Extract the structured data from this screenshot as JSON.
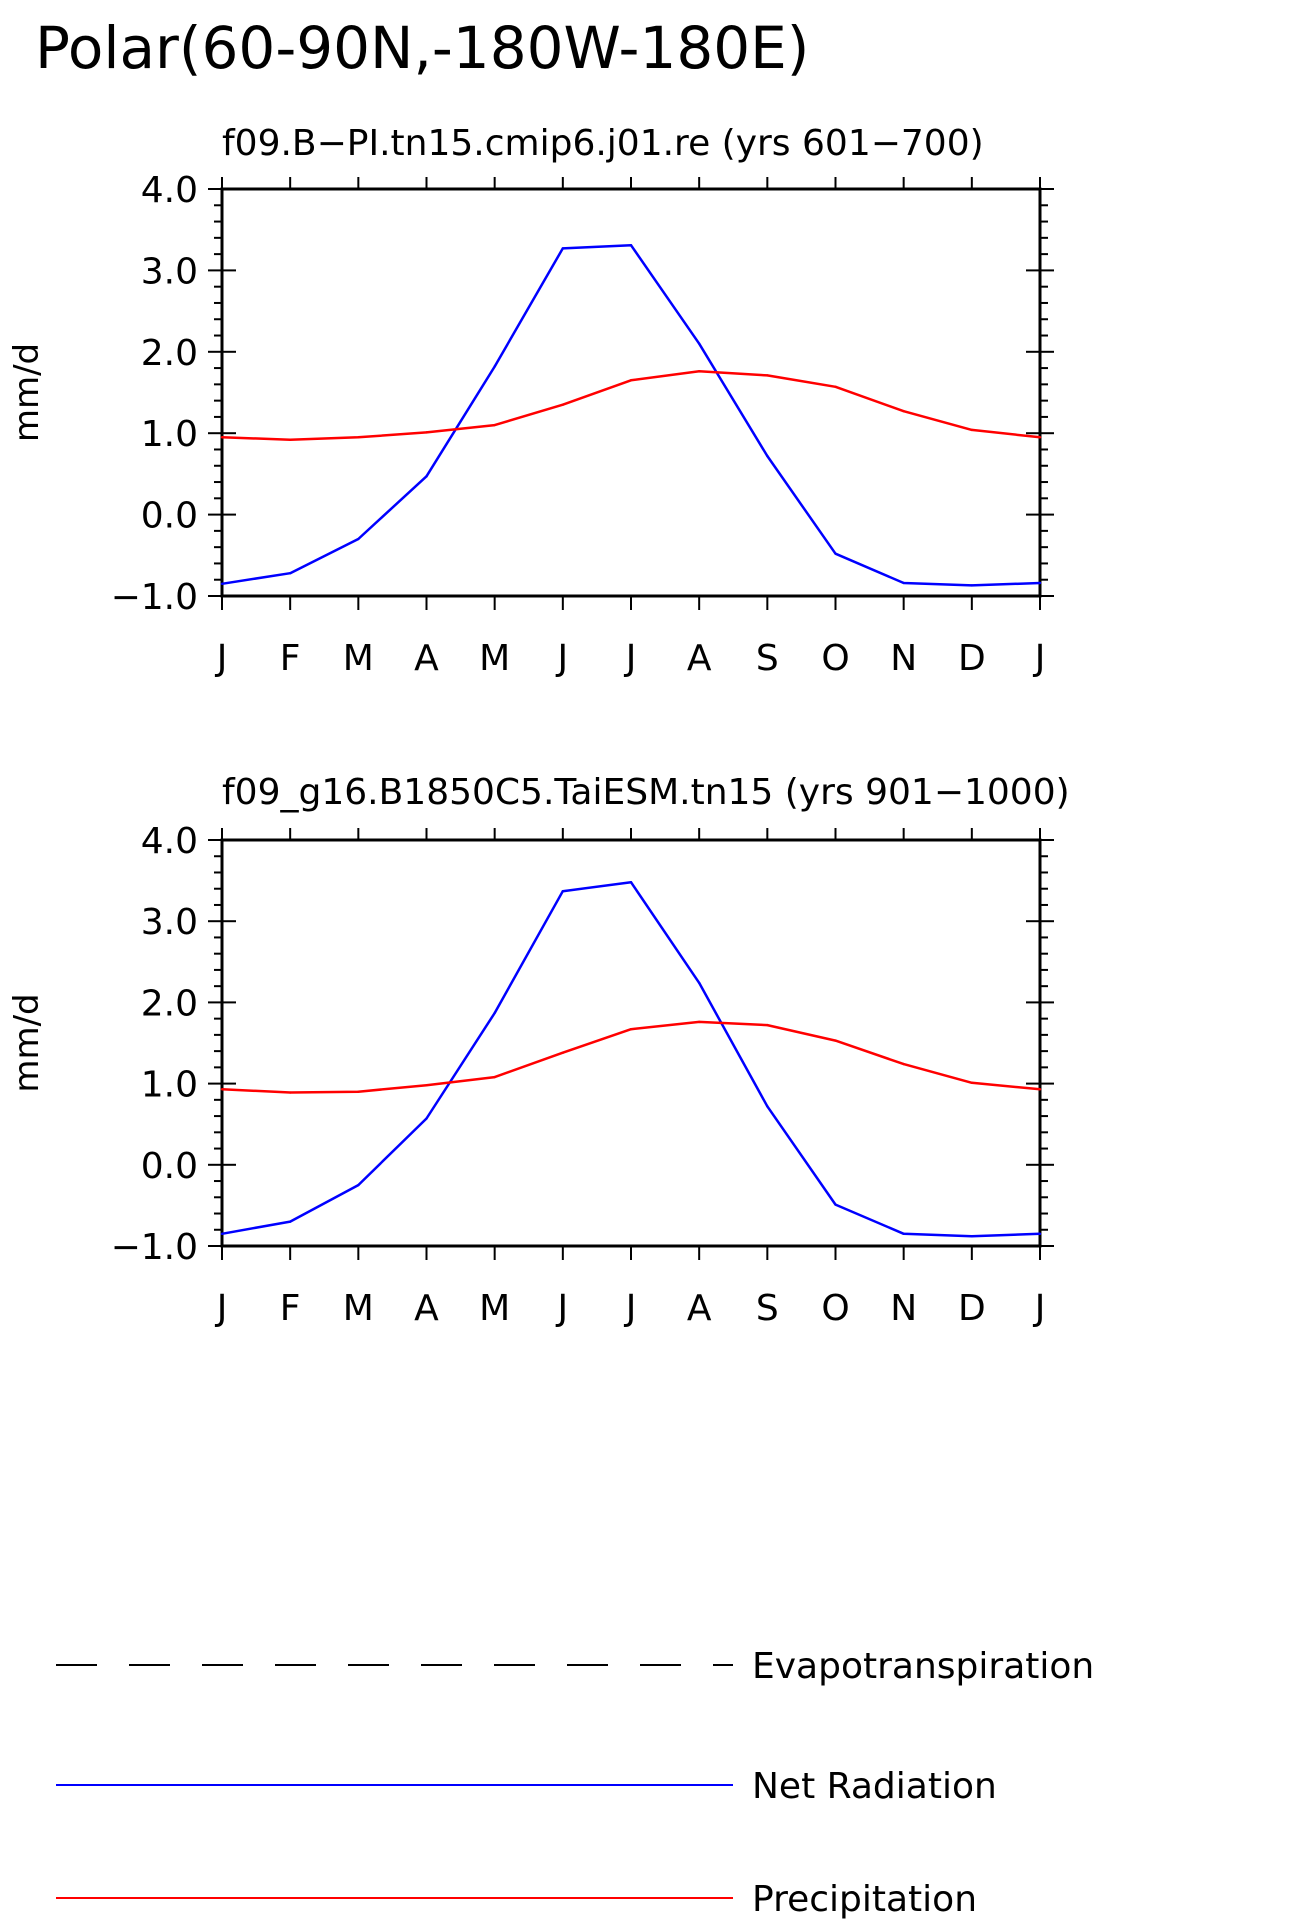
{
  "main_title": "Polar(60-90N,-180W-180E)",
  "colors": {
    "net_radiation": "#0000ff",
    "precipitation": "#ff0000",
    "axes": "#000000"
  },
  "legend": [
    {
      "label": "Evapotranspiration",
      "color": "#000000",
      "style": "dashed"
    },
    {
      "label": "Net Radiation",
      "color": "#0000ff",
      "style": "solid"
    },
    {
      "label": "Precipitation",
      "color": "#ff0000",
      "style": "solid"
    }
  ],
  "chart_data": [
    {
      "type": "line",
      "title": "f09.B-PI.tn15.cmip6.j01.re (yrs 601-700)",
      "ylabel": "mm/d",
      "xlabel": "",
      "categories": [
        "J",
        "F",
        "M",
        "A",
        "M",
        "J",
        "J",
        "A",
        "S",
        "O",
        "N",
        "D",
        "J"
      ],
      "ylim": [
        -1.0,
        4.0
      ],
      "yticks": [
        "-1.0",
        "0.0",
        "1.0",
        "2.0",
        "3.0",
        "4.0"
      ],
      "series": [
        {
          "name": "Net Radiation",
          "color": "#0000ff",
          "values": [
            -0.85,
            -0.72,
            -0.3,
            0.47,
            1.82,
            3.27,
            3.31,
            2.1,
            0.72,
            -0.48,
            -0.84,
            -0.87,
            -0.84
          ]
        },
        {
          "name": "Precipitation",
          "color": "#ff0000",
          "values": [
            0.95,
            0.92,
            0.95,
            1.01,
            1.1,
            1.35,
            1.65,
            1.76,
            1.71,
            1.57,
            1.27,
            1.04,
            0.95
          ]
        }
      ]
    },
    {
      "type": "line",
      "title": "f09_g16.B1850C5.TaiESM.tn15 (yrs 901-1000)",
      "ylabel": "mm/d",
      "xlabel": "",
      "categories": [
        "J",
        "F",
        "M",
        "A",
        "M",
        "J",
        "J",
        "A",
        "S",
        "O",
        "N",
        "D",
        "J"
      ],
      "ylim": [
        -1.0,
        4.0
      ],
      "yticks": [
        "-1.0",
        "0.0",
        "1.0",
        "2.0",
        "3.0",
        "4.0"
      ],
      "series": [
        {
          "name": "Net Radiation",
          "color": "#0000ff",
          "values": [
            -0.85,
            -0.7,
            -0.25,
            0.57,
            1.87,
            3.37,
            3.48,
            2.24,
            0.72,
            -0.49,
            -0.85,
            -0.88,
            -0.85
          ]
        },
        {
          "name": "Precipitation",
          "color": "#ff0000",
          "values": [
            0.93,
            0.89,
            0.9,
            0.98,
            1.08,
            1.38,
            1.67,
            1.76,
            1.72,
            1.53,
            1.24,
            1.01,
            0.93
          ]
        }
      ]
    }
  ]
}
